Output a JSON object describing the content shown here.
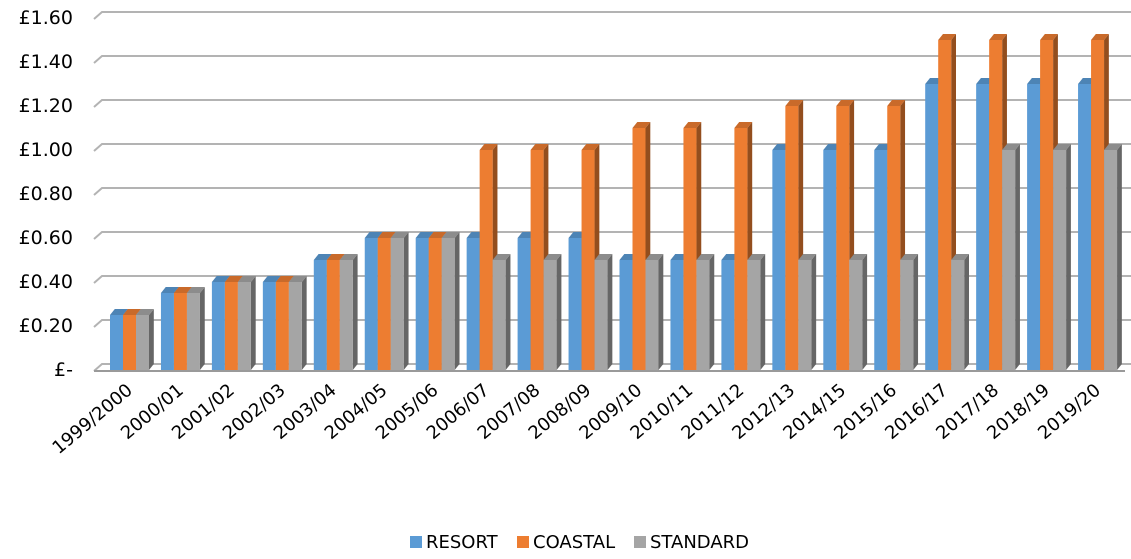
{
  "chart_data": {
    "type": "bar",
    "categories": [
      "1999/2000",
      "2000/01",
      "2001/02",
      "2002/03",
      "2003/04",
      "2004/05",
      "2005/06",
      "2006/07",
      "2007/08",
      "2008/09",
      "2009/10",
      "2010/11",
      "2011/12",
      "2012/13",
      "2014/15",
      "2015/16",
      "2016/17",
      "2017/18",
      "2018/19",
      "2019/20"
    ],
    "series": [
      {
        "name": "RESORT",
        "color": "#5B9BD5",
        "values": [
          0.25,
          0.35,
          0.4,
          0.4,
          0.5,
          0.6,
          0.6,
          0.6,
          0.6,
          0.6,
          0.5,
          0.5,
          0.5,
          1.0,
          1.0,
          1.0,
          1.3,
          1.3,
          1.3,
          1.3
        ]
      },
      {
        "name": "COASTAL",
        "color": "#ED7D31",
        "values": [
          0.25,
          0.35,
          0.4,
          0.4,
          0.5,
          0.6,
          0.6,
          1.0,
          1.0,
          1.0,
          1.1,
          1.1,
          1.1,
          1.2,
          1.2,
          1.2,
          1.5,
          1.5,
          1.5,
          1.5
        ]
      },
      {
        "name": "STANDARD",
        "color": "#A5A5A5",
        "values": [
          0.25,
          0.35,
          0.4,
          0.4,
          0.5,
          0.6,
          0.6,
          0.5,
          0.5,
          0.5,
          0.5,
          0.5,
          0.5,
          0.5,
          0.5,
          0.5,
          0.5,
          1.0,
          1.0,
          1.0
        ]
      }
    ],
    "yticks": [
      0,
      0.2,
      0.4,
      0.6,
      0.8,
      1.0,
      1.2,
      1.4,
      1.6
    ],
    "ytick_labels": [
      "£-",
      "£0.20",
      "£0.40",
      "£0.60",
      "£0.80",
      "£1.00",
      "£1.20",
      "£1.40",
      "£1.60"
    ],
    "ylim": [
      0,
      1.6
    ],
    "grid": true,
    "legend_position": "bottom",
    "style": "3d-clustered-column"
  }
}
